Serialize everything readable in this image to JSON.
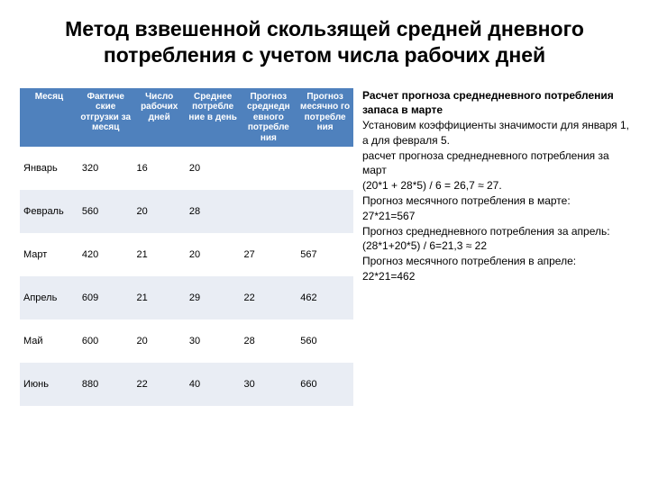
{
  "title": "Метод взвешенной скользящей средней дневного потребления с учетом числа рабочих дней",
  "table": {
    "headers": [
      "Месяц",
      "Фактиче\nские\nотгрузки\nза\nмесяц",
      "Число\nрабочих\nдней",
      "Среднее\nпотребле\nние\nв день",
      "Прогноз\nсреднедн\nевного\nпотребле\nния",
      "Прогноз\nмесячно\nго\nпотребле\nния"
    ],
    "rows": [
      [
        "Январь",
        "320",
        "16",
        "20",
        "",
        ""
      ],
      [
        "Февраль",
        "560",
        "20",
        "28",
        "",
        ""
      ],
      [
        "Март",
        "420",
        "21",
        "20",
        "27",
        "567"
      ],
      [
        "Апрель",
        "609",
        "21",
        "29",
        "22",
        "462"
      ],
      [
        "Май",
        "600",
        "20",
        "30",
        "28",
        "560"
      ],
      [
        "Июнь",
        "880",
        "22",
        "40",
        "30",
        "660"
      ]
    ],
    "header_bg": "#4f81bd",
    "header_color": "#ffffff",
    "row_bg": "#ffffff",
    "row_alt_bg": "#e9edf4",
    "font_size_header": 10,
    "font_size_body": 11
  },
  "side": {
    "heading": "Расчет прогноза среднедневного потребления запаса в марте",
    "lines": [
      "Установим коэффициенты значимости для января 1, а для февраля 5.",
      "расчет прогноза среднедневного потребления за март",
      "(20*1 + 28*5) / 6 = 26,7 ≈ 27.",
      "Прогноз месячного потребления в марте:",
      "27*21=567",
      "Прогноз среднедневного потребления за апрель:",
      "(28*1+20*5) / 6=21,3 ≈ 22",
      "Прогноз месячного потребления в апреле:",
      "22*21=462"
    ]
  }
}
